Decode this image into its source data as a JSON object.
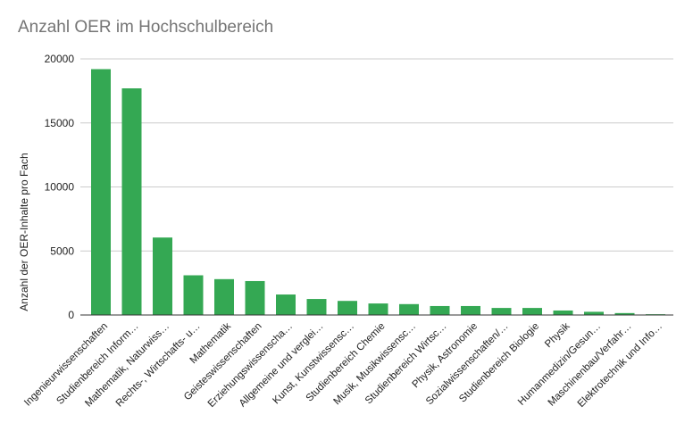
{
  "chart_data": {
    "type": "bar",
    "title": "Anzahl OER im Hochschulbereich",
    "xlabel": "",
    "ylabel": "Anzahl der OER-Inhalte pro Fach",
    "ylim": [
      0,
      20000
    ],
    "yticks": [
      0,
      5000,
      10000,
      15000,
      20000
    ],
    "grid": true,
    "bar_color": "#34a853",
    "categories": [
      "Ingenieurwissenschaften",
      "Studienbereich Inform…",
      "Mathematik, Naturwiss…",
      "Rechts-, Wirtschafts- u…",
      "Mathematik",
      "Geisteswissenschaften",
      "Erziehungswissenscha…",
      "Allgemeine und verglei…",
      "Kunst, Kunstwissensc…",
      "Studienbereich Chemie",
      "Musik, Musikwissensc…",
      "Studienbereich Wirtsc…",
      "Physik, Astronomie",
      "Sozialwissenschaften/…",
      "Studienbereich Biologie",
      "Physik",
      "Humanmedizin/Gesun…",
      "Maschinenbau/Verfahr…",
      "Elektrotechnik und Info…"
    ],
    "values": [
      19200,
      17700,
      6050,
      3100,
      2800,
      2650,
      1600,
      1250,
      1100,
      900,
      850,
      700,
      700,
      550,
      550,
      350,
      250,
      150,
      60
    ]
  }
}
